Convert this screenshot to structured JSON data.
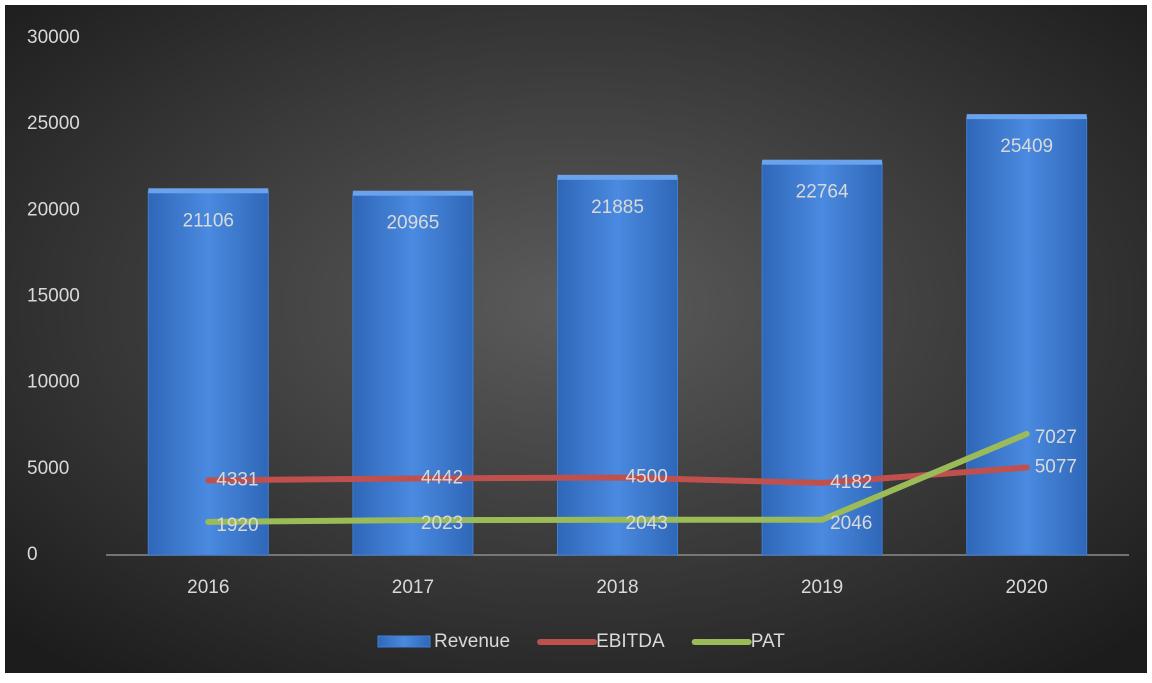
{
  "chart_data": {
    "type": "bar",
    "categories": [
      "2016",
      "2017",
      "2018",
      "2019",
      "2020"
    ],
    "series": [
      {
        "name": "Revenue",
        "type": "bar",
        "color": "#3f7fd6",
        "values": [
          21106,
          20965,
          21885,
          22764,
          25409
        ]
      },
      {
        "name": "EBITDA",
        "type": "line",
        "color": "#c0504d",
        "values": [
          4331,
          4442,
          4500,
          4182,
          5077
        ]
      },
      {
        "name": "PAT",
        "type": "line",
        "color": "#9bbb59",
        "values": [
          1920,
          2023,
          2043,
          2046,
          7027
        ]
      }
    ],
    "ylim": [
      0,
      30000
    ],
    "yticks": [
      0,
      5000,
      10000,
      15000,
      20000,
      25000,
      30000
    ],
    "grid": false,
    "legend": "bottom"
  }
}
